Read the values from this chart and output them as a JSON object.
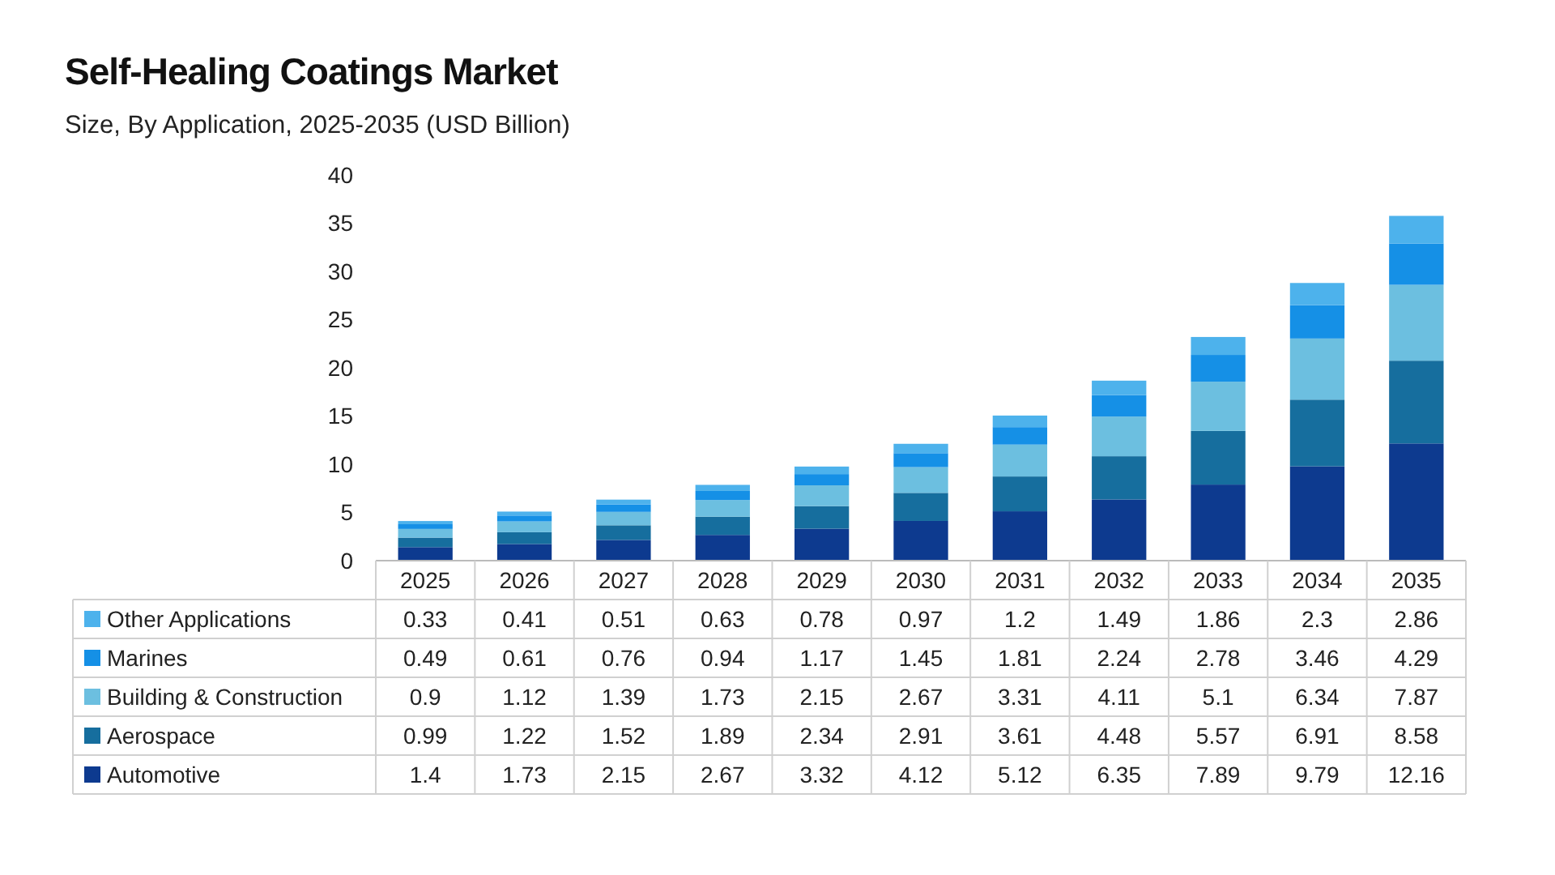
{
  "chart_data": {
    "type": "bar",
    "title": "Self-Healing Coatings Market",
    "subtitle": "Size, By Application, 2025-2035 (USD Billion)",
    "categories": [
      "2025",
      "2026",
      "2027",
      "2028",
      "2029",
      "2030",
      "2031",
      "2032",
      "2033",
      "2034",
      "2035"
    ],
    "stacked": true,
    "data_labels": true,
    "legend": "bottom",
    "ylim": [
      0,
      40
    ],
    "yticks": [
      0,
      5,
      10,
      15,
      20,
      25,
      30,
      35,
      40
    ],
    "series": [
      {
        "name": "Automotive",
        "color": "#0d3a8f",
        "values": [
          1.4,
          1.73,
          2.15,
          2.67,
          3.32,
          4.12,
          5.12,
          6.35,
          7.89,
          9.79,
          12.16
        ]
      },
      {
        "name": "Aerospace",
        "color": "#166e9e",
        "values": [
          0.99,
          1.22,
          1.52,
          1.89,
          2.34,
          2.91,
          3.61,
          4.48,
          5.57,
          6.91,
          8.58
        ]
      },
      {
        "name": "Building & Construction",
        "color": "#6cbfe0",
        "values": [
          0.9,
          1.12,
          1.39,
          1.73,
          2.15,
          2.67,
          3.31,
          4.11,
          5.1,
          6.34,
          7.87
        ]
      },
      {
        "name": "Marines",
        "color": "#1590e6",
        "values": [
          0.49,
          0.61,
          0.76,
          0.94,
          1.17,
          1.45,
          1.81,
          2.24,
          2.78,
          3.46,
          4.29
        ]
      },
      {
        "name": "Other Applications",
        "color": "#4db2ec",
        "values": [
          0.33,
          0.41,
          0.51,
          0.63,
          0.78,
          0.97,
          1.2,
          1.49,
          1.86,
          2.3,
          2.86
        ]
      }
    ]
  }
}
